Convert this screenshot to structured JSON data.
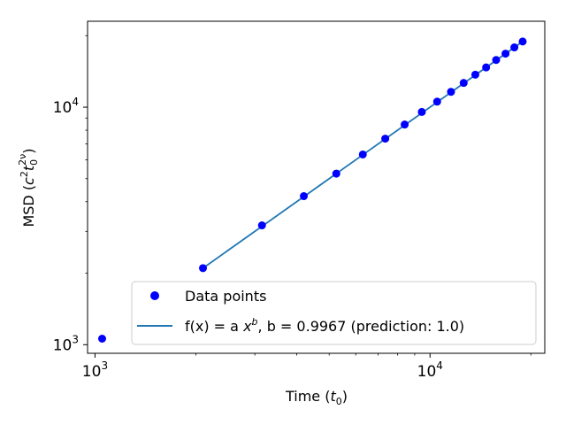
{
  "chart_data": {
    "type": "scatter",
    "title": "",
    "xlabel": {
      "base": "Time (",
      "var": "t",
      "sub": "0",
      "tail": ")"
    },
    "ylabel": {
      "base": "MSD (",
      "c": "c",
      "c_sup": "2",
      "t": "t",
      "t_sub": "0",
      "t_sup": "2ν",
      "tail": ")"
    },
    "xscale": "log",
    "yscale": "log",
    "xlim": [
      950,
      22000
    ],
    "ylim": [
      920,
      23000
    ],
    "x_major_ticks": [
      {
        "value": 1000,
        "base": "10",
        "exp": "3"
      },
      {
        "value": 10000,
        "base": "10",
        "exp": "4"
      }
    ],
    "y_major_ticks": [
      {
        "value": 1000,
        "base": "10",
        "exp": "3"
      },
      {
        "value": 10000,
        "base": "10",
        "exp": "4"
      }
    ],
    "y_minor_ticks": [
      2000,
      3000,
      4000,
      6000,
      20000
    ],
    "grid": false,
    "legend_position": "lower-right",
    "colors": {
      "points": "#0000ff",
      "fit": "#1f77b4"
    },
    "series": [
      {
        "name": "Data points",
        "kind": "scatter",
        "x": [
          1050,
          2100,
          3150,
          4200,
          5250,
          6300,
          7350,
          8400,
          9450,
          10500,
          11550,
          12600,
          13650,
          14700,
          15750,
          16800,
          17850,
          18900
        ],
        "y": [
          1060,
          2100,
          3180,
          4220,
          5250,
          6320,
          7370,
          8450,
          9550,
          10550,
          11600,
          12650,
          13700,
          14700,
          15800,
          16800,
          17850,
          18900
        ]
      },
      {
        "name_prefix": "f(x) = a ",
        "name_var": "x",
        "name_sup": "b",
        "name_suffix": ", b = 0.9967 (prediction: 1.0)",
        "kind": "line",
        "x": [
          2100,
          18900
        ],
        "y": [
          2100,
          18900
        ]
      }
    ]
  }
}
